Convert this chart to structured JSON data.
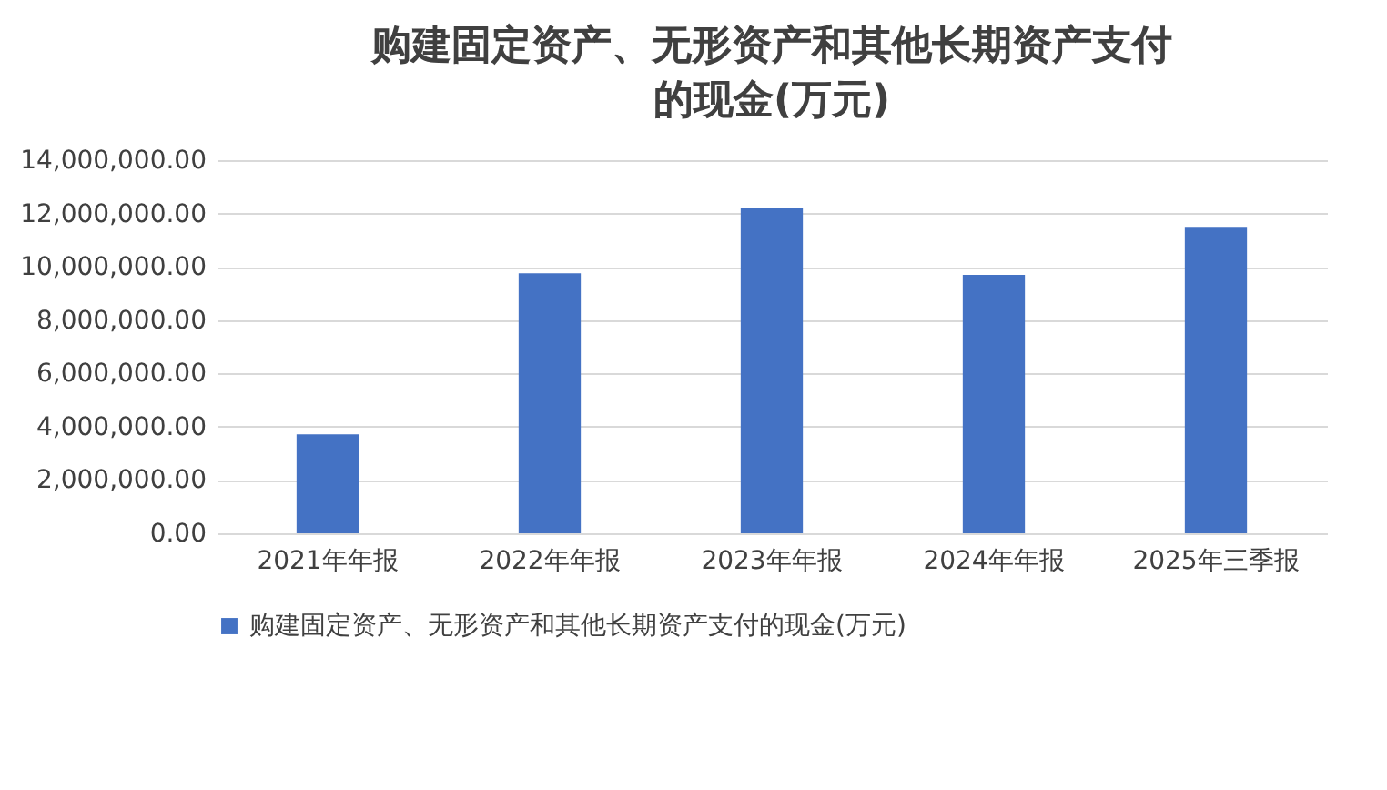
{
  "chart_data": {
    "type": "bar",
    "title": "购建固定资产、无形资产和其他长期资产支付的现金(万元)",
    "categories": [
      "2021年年报",
      "2022年年报",
      "2023年年报",
      "2024年年报",
      "2025年三季报"
    ],
    "series": [
      {
        "name": "购建固定资产、无形资产和其他长期资产支付的现金(万元)",
        "color": "#4472c4",
        "values": [
          3710000,
          9760000,
          12200000,
          9700000,
          11500000
        ]
      }
    ],
    "ylim": [
      0,
      14000000
    ],
    "yticks": [
      {
        "value": 0,
        "label": "0.00"
      },
      {
        "value": 2000000,
        "label": "2,000,000.00"
      },
      {
        "value": 4000000,
        "label": "4,000,000.00"
      },
      {
        "value": 6000000,
        "label": "6,000,000.00"
      },
      {
        "value": 8000000,
        "label": "8,000,000.00"
      },
      {
        "value": 10000000,
        "label": "10,000,000.00"
      },
      {
        "value": 12000000,
        "label": "12,000,000.00"
      },
      {
        "value": 14000000,
        "label": "14,000,000.00"
      }
    ],
    "grid": "y",
    "legend": "bottom"
  }
}
